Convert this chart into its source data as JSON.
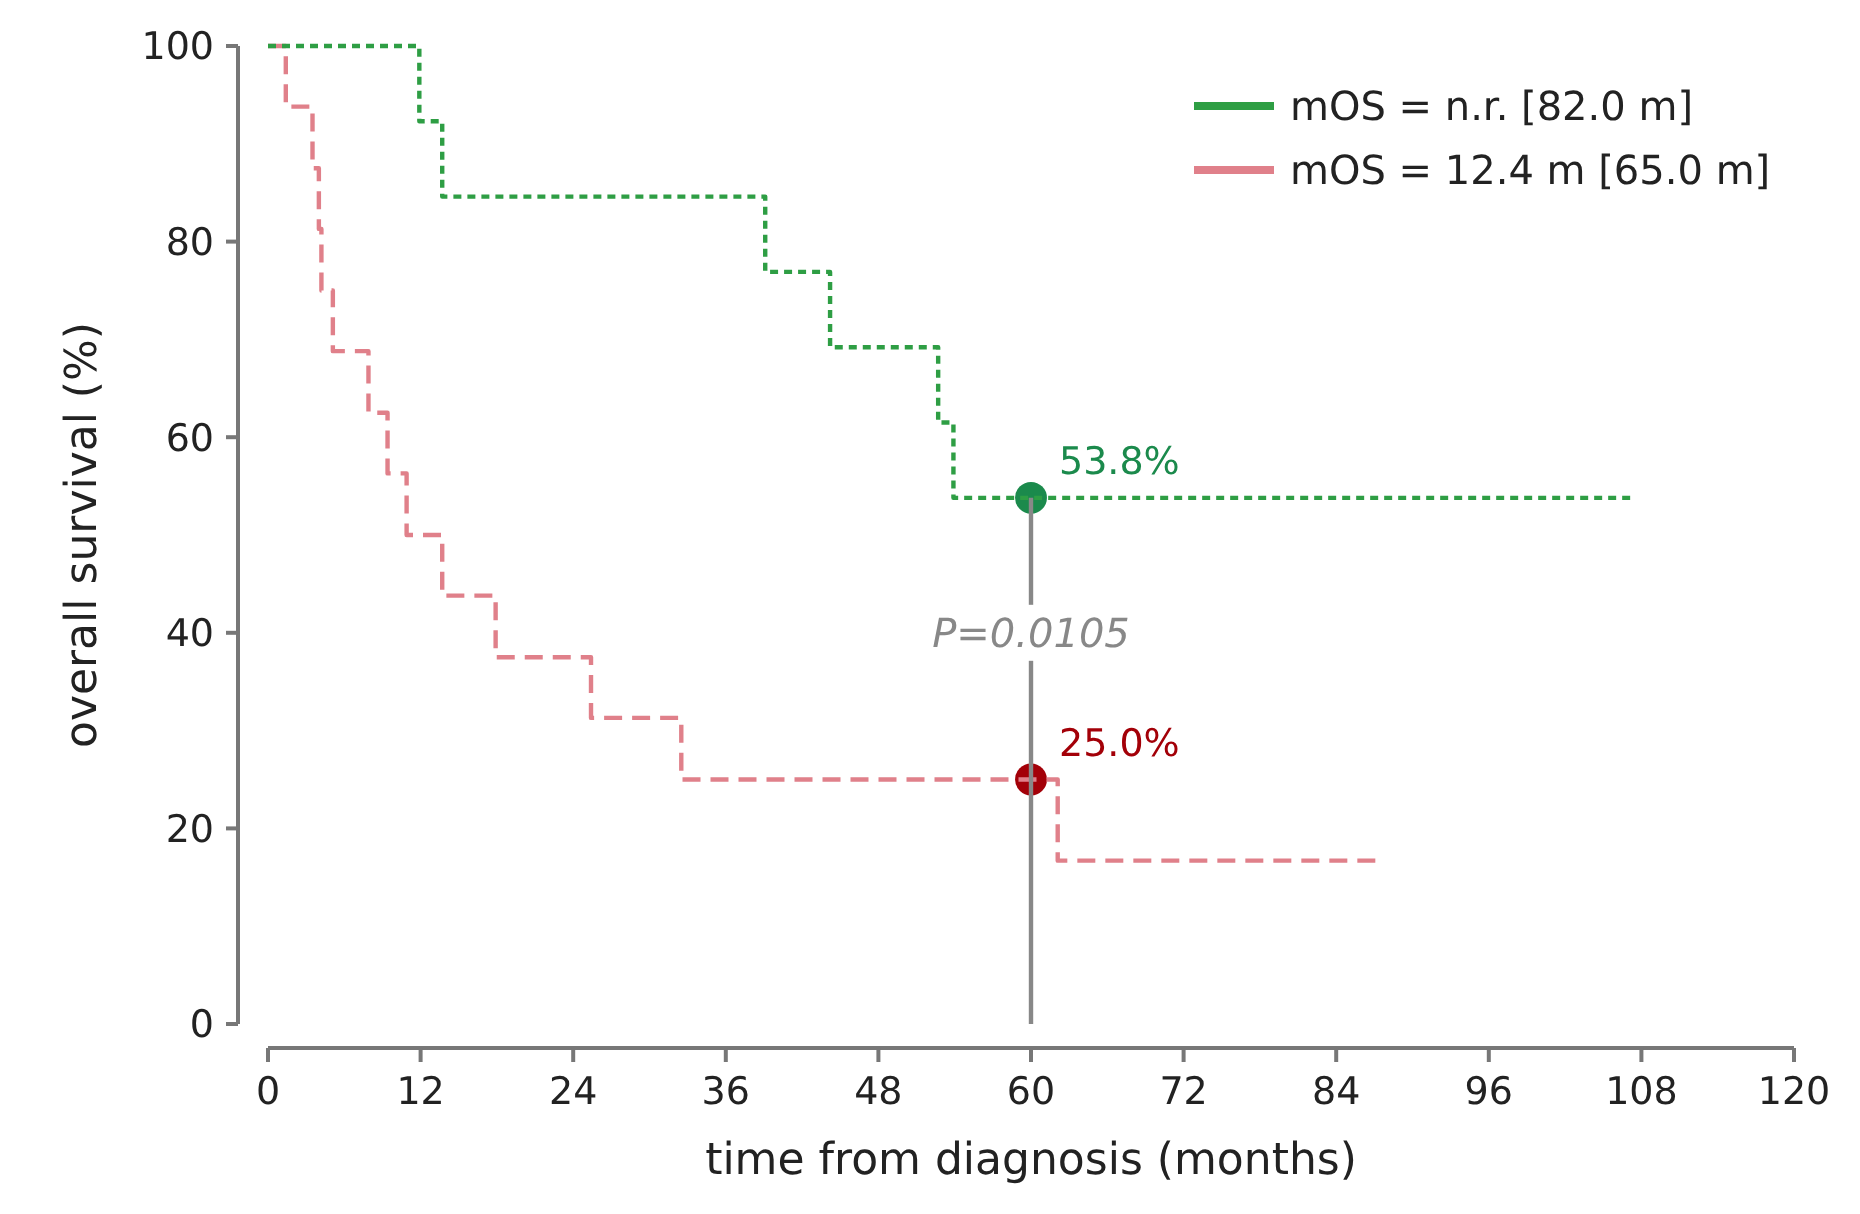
{
  "chart_data": {
    "type": "step",
    "xlabel": "time from diagnosis (months)",
    "ylabel": "overall survival (%)",
    "xlim": [
      0,
      120
    ],
    "xticks": [
      0,
      12,
      24,
      36,
      48,
      60,
      72,
      84,
      96,
      108,
      120
    ],
    "ylim": [
      0,
      100
    ],
    "yticks": [
      0,
      20,
      40,
      60,
      80,
      100
    ],
    "grid": false,
    "legend": "top right",
    "series": [
      {
        "name": "mOS = n.r. [82.0 m]",
        "color": "#2e9e44",
        "line_style": "dotted",
        "x": [
          0,
          11.9,
          13.7,
          39.1,
          44.2,
          52.7,
          53.9,
          107.2
        ],
        "values": [
          100,
          92.3,
          84.6,
          76.9,
          69.2,
          61.5,
          53.8,
          53.8
        ]
      },
      {
        "name": "mOS = 12.4 m [65.0 m]",
        "color": "#e0808a",
        "line_style": "dashed",
        "x": [
          0,
          1.4,
          3.5,
          4.0,
          4.2,
          5.1,
          7.9,
          9.4,
          10.9,
          13.7,
          17.9,
          25.4,
          32.5,
          62.1,
          87.2
        ],
        "values": [
          100,
          93.8,
          87.5,
          81.3,
          75,
          68.8,
          62.5,
          56.3,
          50,
          43.8,
          37.5,
          31.3,
          25,
          16.7,
          16.7
        ]
      },
      {
        "type": "line",
        "color": "#888888",
        "line_style": "solid",
        "x": [
          60,
          60
        ],
        "values": [
          0,
          53.8
        ]
      },
      {
        "type": "scatter",
        "color": "#1b8a4c",
        "marker": "circle",
        "x": [
          60
        ],
        "values": [
          53.8
        ],
        "value_labels": [
          "53.8%"
        ]
      },
      {
        "type": "scatter",
        "color": "#a30008",
        "marker": "circle",
        "x": [
          60
        ],
        "values": [
          25.0
        ],
        "value_labels": [
          "25.0%"
        ]
      }
    ],
    "annotations": [
      {
        "text": "P=0.0105",
        "x": 60,
        "y": 40
      }
    ]
  }
}
